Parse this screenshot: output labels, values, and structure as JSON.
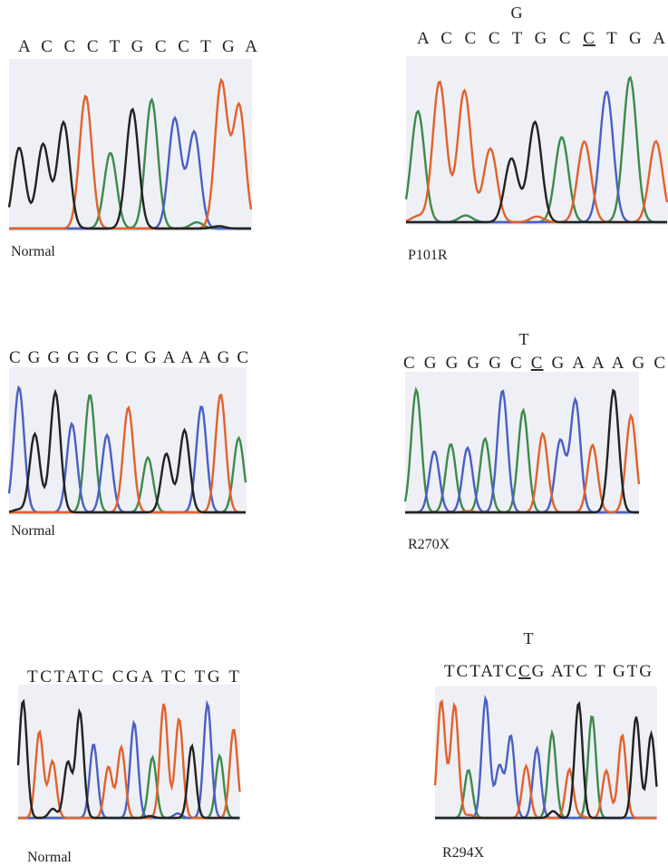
{
  "panels": [
    {
      "sequence": [
        "A C C C T G C C T G A"
      ],
      "label": "Normal"
    },
    {
      "mutation": "G",
      "sequence": [
        "A C C C T G C ",
        "C",
        " T G A"
      ],
      "label": "P101R"
    },
    {
      "sequence": [
        "C G G G G C C G A A A G C"
      ],
      "label": "Normal"
    },
    {
      "mutation": "T",
      "sequence": [
        "C G G G G C ",
        "C",
        " G A A A G C"
      ],
      "label": "R270X"
    },
    {
      "sequence": [
        "TCTATC CGA TC TG T"
      ],
      "label": "Normal"
    },
    {
      "mutation": "T",
      "sequence": [
        "TCTATC",
        "C",
        "G ATC T GTG"
      ],
      "label": "R294X"
    }
  ]
}
